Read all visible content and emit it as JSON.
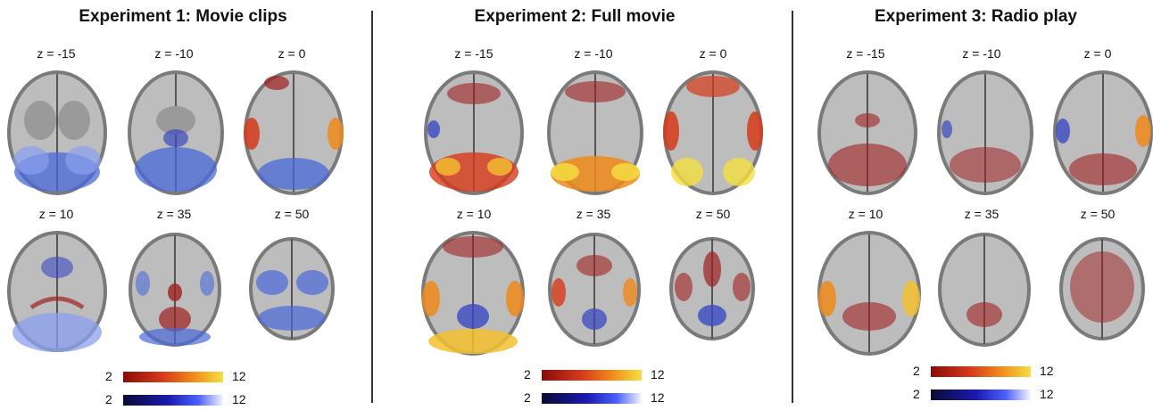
{
  "panels": [
    {
      "title": "Experiment 1: Movie clips",
      "row1": [
        "z = -15",
        "z = -10",
        "z = 0"
      ],
      "row2": [
        "z = 10",
        "z = 35",
        "z = 50"
      ],
      "colorbars": {
        "red": {
          "min": "2",
          "max": "12"
        },
        "blue": {
          "min": "2",
          "max": "12"
        }
      }
    },
    {
      "title": "Experiment 2: Full movie",
      "row1": [
        "z = -15",
        "z = -10",
        "z = 0"
      ],
      "row2": [
        "z = 10",
        "z = 35",
        "z = 50"
      ],
      "colorbars": {
        "red": {
          "min": "2",
          "max": "12"
        },
        "blue": {
          "min": "2",
          "max": "12"
        }
      }
    },
    {
      "title": "Experiment 3: Radio play",
      "row1": [
        "z = -15",
        "z = -10",
        "z = 0"
      ],
      "row2": [
        "z = 10",
        "z = 35",
        "z = 50"
      ],
      "colorbars": {
        "red": {
          "min": "2",
          "max": "12"
        },
        "blue": {
          "min": "2",
          "max": "12"
        }
      }
    }
  ],
  "colors": {
    "positive": "#d63a1a",
    "negative": "#3a50e0",
    "brain_gray": "#8a8a8a"
  }
}
